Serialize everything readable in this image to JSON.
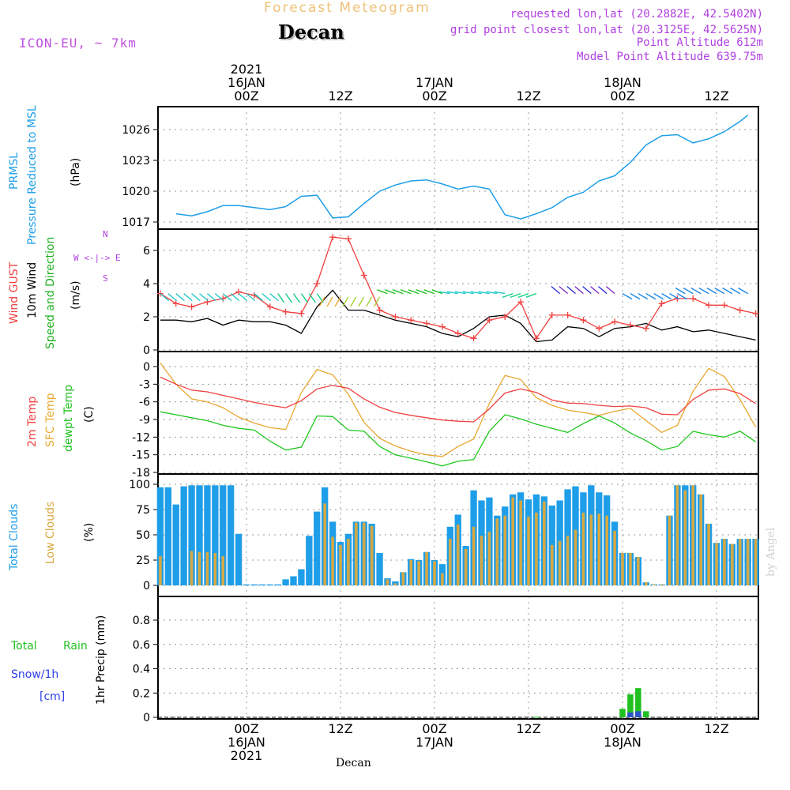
{
  "header": {
    "title": "Forecast Meteogram",
    "place": "Decan",
    "model": "ICON-EU, ~ 7km",
    "requested": "requested lon,lat (20.2882E, 42.5402N)",
    "grid_point": "grid point closest lon,lat (20.3125E, 42.5625N)",
    "point_alt": "Point Altitude 612m",
    "model_alt": "Model Point Altitude 639.75m"
  },
  "footer": {
    "place": "Decan",
    "credit": "by Angel"
  },
  "axis_labels": {
    "top": [
      {
        "lines": [
          "2021",
          "16JAN",
          "00Z"
        ],
        "h": 0
      },
      {
        "lines": [
          "12Z"
        ],
        "h": 12
      },
      {
        "lines": [
          "17JAN",
          "00Z"
        ],
        "h": 24
      },
      {
        "lines": [
          "12Z"
        ],
        "h": 36
      },
      {
        "lines": [
          "18JAN",
          "00Z"
        ],
        "h": 48
      },
      {
        "lines": [
          "12Z"
        ],
        "h": 60
      }
    ],
    "bottom": [
      {
        "lines": [
          "00Z",
          "16JAN",
          "2021"
        ],
        "h": 0
      },
      {
        "lines": [
          "12Z"
        ],
        "h": 12
      },
      {
        "lines": [
          "00Z",
          "17JAN"
        ],
        "h": 24
      },
      {
        "lines": [
          "12Z"
        ],
        "h": 36
      },
      {
        "lines": [
          "00Z",
          "18JAN"
        ],
        "h": 48
      },
      {
        "lines": [
          "12Z"
        ],
        "h": 60
      }
    ]
  },
  "panel_labels": {
    "pressure": [
      "PRMSL",
      "Pressure Reduced to MSL",
      "(hPa)"
    ],
    "wind": [
      "Wind GUST",
      "10m Wind",
      "Speed and Direction",
      "(m/s)"
    ],
    "compass": [
      "N",
      "W  <-|->  E",
      "S"
    ],
    "temp": [
      "2m Temp",
      "SFC Temp",
      "dewpt Temp",
      "(C)"
    ],
    "clouds": [
      "Total Clouds",
      "Low Clouds",
      "(%)"
    ],
    "precip_left": [
      "Total",
      "Rain",
      "Snow/1h",
      "[cm]"
    ],
    "precip_axis": "1hr Precip (mm)"
  },
  "colors": {
    "pressure": "#1e9ee8",
    "gust": "#f04040",
    "wind": "#000000",
    "temp2m": "#f04040",
    "sfc": "#e8a830",
    "dewpt": "#20c820",
    "total_clouds": "#1e9ee8",
    "low_clouds": "#d8a840",
    "rain": "#20c020",
    "snow": "#3040e8",
    "compass": "#b040e0"
  },
  "chart_data": [
    {
      "type": "line",
      "title": "PRMSL Pressure Reduced to MSL",
      "ylabel": "(hPa)",
      "ylim": [
        1016.5,
        1027.5
      ],
      "yticks": [
        1017,
        1020,
        1023,
        1026
      ],
      "x_hours_from_16JAN_00Z": [
        -9,
        -7,
        -5,
        -3,
        -1,
        1,
        3,
        5,
        7,
        9,
        11,
        13,
        15,
        17,
        19,
        21,
        23,
        25,
        27,
        29,
        31,
        33,
        35,
        37,
        39,
        41,
        43,
        45,
        47,
        49,
        51,
        53,
        55,
        57,
        59,
        61,
        63,
        64
      ],
      "series": [
        {
          "name": "PRMSL",
          "values": [
            1017.8,
            1017.6,
            1018.0,
            1018.6,
            1018.6,
            1018.4,
            1018.2,
            1018.5,
            1019.5,
            1019.6,
            1017.4,
            1017.5,
            1018.8,
            1020.0,
            1020.6,
            1021.0,
            1021.1,
            1020.7,
            1020.2,
            1020.5,
            1020.2,
            1017.7,
            1017.3,
            1017.8,
            1018.4,
            1019.4,
            1019.9,
            1021.0,
            1021.5,
            1022.8,
            1024.5,
            1025.4,
            1025.5,
            1024.7,
            1025.1,
            1025.8,
            1026.8,
            1027.4
          ]
        }
      ]
    },
    {
      "type": "line",
      "title": "Wind GUST / 10m Wind Speed and Direction",
      "ylabel": "(m/s)",
      "ylim": [
        0,
        7
      ],
      "yticks": [
        0,
        2,
        4,
        6
      ],
      "x_hours_from_16JAN_00Z": [
        -11,
        -9,
        -7,
        -5,
        -3,
        -1,
        1,
        3,
        5,
        7,
        9,
        11,
        13,
        15,
        17,
        19,
        21,
        23,
        25,
        27,
        29,
        31,
        33,
        35,
        37,
        39,
        41,
        43,
        45,
        47,
        49,
        51,
        53,
        55,
        57,
        59,
        61,
        63,
        65
      ],
      "series": [
        {
          "name": "Wind GUST",
          "values": [
            3.4,
            2.8,
            2.6,
            2.9,
            3.1,
            3.5,
            3.3,
            2.6,
            2.3,
            2.2,
            4.0,
            6.8,
            6.7,
            4.5,
            2.4,
            2.0,
            1.8,
            1.6,
            1.4,
            1.0,
            0.7,
            1.8,
            2.0,
            2.9,
            0.7,
            2.1,
            2.1,
            1.8,
            1.3,
            1.7,
            1.5,
            1.3,
            2.8,
            3.1,
            3.1,
            2.7,
            2.7,
            2.4,
            2.2
          ]
        },
        {
          "name": "10m Wind",
          "values": [
            1.8,
            1.8,
            1.7,
            1.9,
            1.5,
            1.8,
            1.7,
            1.7,
            1.5,
            1.0,
            2.6,
            3.6,
            2.4,
            2.4,
            2.1,
            1.8,
            1.6,
            1.4,
            1.0,
            0.8,
            1.3,
            2.0,
            2.1,
            1.6,
            0.5,
            0.6,
            1.4,
            1.3,
            0.8,
            1.3,
            1.4,
            1.6,
            1.2,
            1.4,
            1.1,
            1.2,
            1.0,
            0.8,
            0.6
          ]
        }
      ]
    },
    {
      "type": "line",
      "title": "2m Temp / SFC Temp / dewpt Temp",
      "ylabel": "(C)",
      "ylim": [
        -18,
        1
      ],
      "yticks": [
        0,
        -3,
        -6,
        -9,
        -12,
        -15,
        -18
      ],
      "x_hours_from_16JAN_00Z": [
        -11,
        -9,
        -7,
        -5,
        -3,
        -1,
        1,
        3,
        5,
        7,
        9,
        11,
        13,
        15,
        17,
        19,
        21,
        23,
        25,
        27,
        29,
        31,
        33,
        35,
        37,
        39,
        41,
        43,
        45,
        47,
        49,
        51,
        53,
        55,
        57,
        59,
        61,
        63,
        65
      ],
      "series": [
        {
          "name": "2m Temp",
          "values": [
            -1.8,
            -3.0,
            -4.0,
            -4.3,
            -4.9,
            -5.5,
            -6.1,
            -6.6,
            -7.0,
            -5.8,
            -3.8,
            -3.2,
            -3.7,
            -5.5,
            -6.9,
            -7.8,
            -8.3,
            -8.7,
            -9.1,
            -9.3,
            -9.4,
            -7.2,
            -4.5,
            -3.8,
            -4.4,
            -5.7,
            -6.2,
            -6.3,
            -6.6,
            -6.8,
            -6.7,
            -7.0,
            -8.1,
            -8.2,
            -5.6,
            -4.0,
            -3.8,
            -4.6,
            -6.3
          ]
        },
        {
          "name": "SFC Temp",
          "values": [
            0.6,
            -3.0,
            -5.5,
            -6.0,
            -7.0,
            -8.6,
            -9.6,
            -10.4,
            -10.7,
            -4.4,
            -0.5,
            -1.4,
            -4.7,
            -9.5,
            -12.2,
            -13.5,
            -14.4,
            -15.0,
            -15.3,
            -13.6,
            -12.3,
            -6.3,
            -1.5,
            -2.2,
            -5.3,
            -6.6,
            -7.4,
            -7.8,
            -8.3,
            -7.6,
            -7.1,
            -9.2,
            -11.2,
            -10.0,
            -4.2,
            -0.3,
            -1.7,
            -5.6,
            -10.3
          ]
        },
        {
          "name": "dewpt Temp",
          "values": [
            -7.7,
            -8.2,
            -8.7,
            -9.2,
            -10.0,
            -10.5,
            -10.8,
            -12.7,
            -14.2,
            -13.7,
            -8.4,
            -8.5,
            -10.8,
            -11.0,
            -13.6,
            -15.0,
            -15.6,
            -16.2,
            -16.9,
            -16.1,
            -15.8,
            -11.0,
            -8.2,
            -8.9,
            -9.8,
            -10.5,
            -11.2,
            -9.7,
            -8.4,
            -9.6,
            -11.3,
            -12.6,
            -14.2,
            -13.6,
            -11.0,
            -11.6,
            -12.0,
            -11.0,
            -12.8
          ]
        }
      ]
    },
    {
      "type": "bar",
      "title": "Total Clouds / Low Clouds",
      "ylabel": "(%)",
      "ylim": [
        0,
        100
      ],
      "yticks": [
        0,
        25,
        50,
        75,
        100
      ],
      "x_hours_from_16JAN_00Z": [
        -11,
        -10,
        -9,
        -8,
        -7,
        -6,
        -5,
        -4,
        -3,
        -2,
        -1,
        0,
        1,
        2,
        3,
        4,
        5,
        6,
        7,
        8,
        9,
        10,
        11,
        12,
        13,
        14,
        15,
        16,
        17,
        18,
        19,
        20,
        21,
        22,
        23,
        24,
        25,
        26,
        27,
        28,
        29,
        30,
        31,
        32,
        33,
        34,
        35,
        36,
        37,
        38,
        39,
        40,
        41,
        42,
        43,
        44,
        45,
        46,
        47,
        48,
        49,
        50,
        51,
        52,
        53,
        54,
        55,
        56,
        57,
        58,
        59,
        60,
        61,
        62,
        63,
        64,
        65
      ],
      "series": [
        {
          "name": "Total Clouds",
          "values": [
            97,
            97,
            80,
            98,
            99,
            99,
            99,
            99,
            99,
            99,
            51,
            1,
            1,
            1,
            1,
            1,
            6,
            9,
            16,
            49,
            73,
            97,
            63,
            43,
            51,
            63,
            63,
            61,
            32,
            7,
            4,
            13,
            26,
            25,
            33,
            25,
            21,
            58,
            70,
            39,
            94,
            84,
            87,
            69,
            78,
            90,
            92,
            85,
            90,
            88,
            79,
            84,
            95,
            98,
            92,
            99,
            92,
            89,
            63,
            32,
            32,
            28,
            3,
            1,
            1,
            69,
            99,
            99,
            99,
            90,
            61,
            42,
            46,
            41,
            46,
            46,
            46
          ]
        },
        {
          "name": "Low Clouds",
          "values": [
            29,
            0,
            0,
            0,
            34,
            33,
            33,
            32,
            29,
            0,
            0,
            0,
            0,
            0,
            0,
            0,
            0,
            0,
            0,
            0,
            0,
            81,
            48,
            40,
            46,
            62,
            62,
            59,
            0,
            6,
            2,
            13,
            25,
            24,
            33,
            24,
            12,
            46,
            60,
            36,
            58,
            49,
            53,
            66,
            69,
            87,
            84,
            68,
            72,
            83,
            40,
            44,
            49,
            55,
            72,
            70,
            71,
            69,
            54,
            32,
            32,
            28,
            3,
            1,
            1,
            69,
            99,
            94,
            99,
            90,
            61,
            42,
            46,
            41,
            46,
            46,
            46
          ]
        }
      ]
    },
    {
      "type": "bar",
      "title": "Total Rain / Snow 1h",
      "ylabel": "1hr Precip (mm)",
      "ylim": [
        0,
        0.95
      ],
      "yticks": [
        0,
        0.2,
        0.4,
        0.6,
        0.8
      ],
      "x_hours_from_16JAN_00Z": [
        37,
        48,
        49,
        50,
        51
      ],
      "series": [
        {
          "name": "Total Rain",
          "values": [
            0.005,
            0.07,
            0.19,
            0.24,
            0.05
          ]
        },
        {
          "name": "Snow/1h",
          "values": [
            0,
            0,
            0.04,
            0.05,
            0
          ]
        }
      ]
    }
  ]
}
